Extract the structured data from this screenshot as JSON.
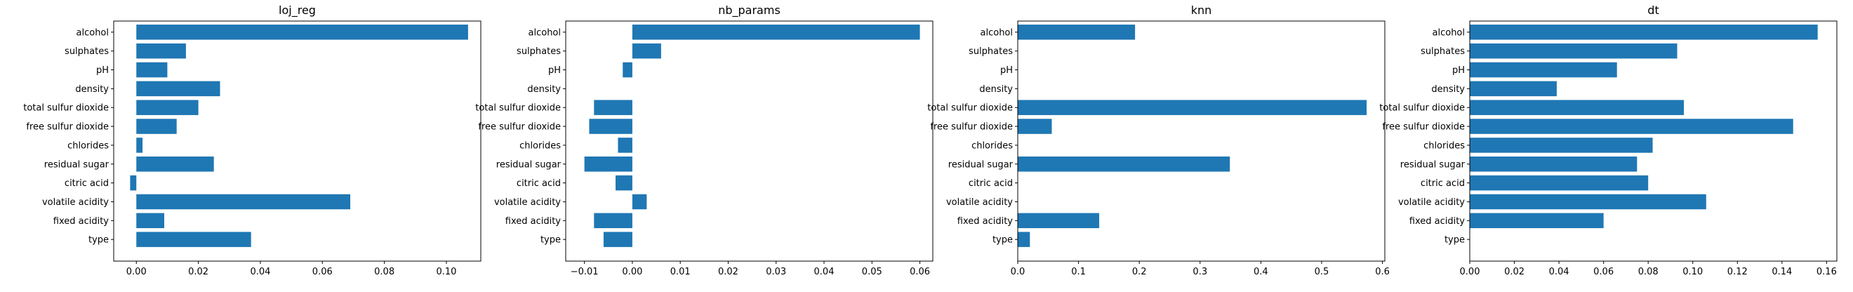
{
  "chart_data": [
    {
      "type": "bar",
      "orientation": "horizontal",
      "title": "loj_reg",
      "categories": [
        "alcohol",
        "sulphates",
        "pH",
        "density",
        "total sulfur dioxide",
        "free sulfur dioxide",
        "chlorides",
        "residual sugar",
        "citric acid",
        "volatile acidity",
        "fixed acidity",
        "type"
      ],
      "values": [
        0.107,
        0.016,
        0.01,
        0.027,
        0.02,
        0.013,
        0.002,
        0.025,
        -0.002,
        0.069,
        0.009,
        0.037
      ],
      "xlim": [
        -0.0073,
        0.1111
      ],
      "xticks": [
        0.0,
        0.02,
        0.04,
        0.06,
        0.08,
        0.1
      ],
      "xtick_labels": [
        "0.00",
        "0.02",
        "0.04",
        "0.06",
        "0.08",
        "0.10"
      ],
      "color": "#1f77b4",
      "grid": false
    },
    {
      "type": "bar",
      "orientation": "horizontal",
      "title": "nb_params",
      "categories": [
        "alcohol",
        "sulphates",
        "pH",
        "density",
        "total sulfur dioxide",
        "free sulfur dioxide",
        "chlorides",
        "residual sugar",
        "citric acid",
        "volatile acidity",
        "fixed acidity",
        "type"
      ],
      "values": [
        0.06,
        0.006,
        -0.002,
        0.0,
        -0.008,
        -0.009,
        -0.003,
        -0.01,
        -0.0035,
        0.003,
        -0.008,
        -0.006
      ],
      "xlim": [
        -0.0139,
        0.0627
      ],
      "xticks": [
        -0.01,
        0.0,
        0.01,
        0.02,
        0.03,
        0.04,
        0.05,
        0.06
      ],
      "xtick_labels": [
        "−0.01",
        "0.00",
        "0.01",
        "0.02",
        "0.03",
        "0.04",
        "0.05",
        "0.06"
      ],
      "color": "#1f77b4",
      "grid": false
    },
    {
      "type": "bar",
      "orientation": "horizontal",
      "title": "knn",
      "categories": [
        "alcohol",
        "sulphates",
        "pH",
        "density",
        "total sulfur dioxide",
        "free sulfur dioxide",
        "chlorides",
        "residual sugar",
        "citric acid",
        "volatile acidity",
        "fixed acidity",
        "type"
      ],
      "values": [
        0.193,
        0.0,
        0.0,
        0.0,
        0.574,
        0.056,
        0.0,
        0.349,
        0.0,
        0.0,
        0.134,
        0.02
      ],
      "xlim": [
        0.0,
        0.604
      ],
      "xticks": [
        0.0,
        0.1,
        0.2,
        0.3,
        0.4,
        0.5,
        0.6
      ],
      "xtick_labels": [
        "0.0",
        "0.1",
        "0.2",
        "0.3",
        "0.4",
        "0.5",
        "0.6"
      ],
      "color": "#1f77b4",
      "grid": false
    },
    {
      "type": "bar",
      "orientation": "horizontal",
      "title": "dt",
      "categories": [
        "alcohol",
        "sulphates",
        "pH",
        "density",
        "total sulfur dioxide",
        "free sulfur dioxide",
        "chlorides",
        "residual sugar",
        "citric acid",
        "volatile acidity",
        "fixed acidity",
        "type"
      ],
      "values": [
        0.156,
        0.093,
        0.066,
        0.039,
        0.096,
        0.145,
        0.082,
        0.075,
        0.08,
        0.106,
        0.06,
        0.0
      ],
      "xlim": [
        0.0,
        0.1646
      ],
      "xticks": [
        0.0,
        0.02,
        0.04,
        0.06,
        0.08,
        0.1,
        0.12,
        0.14,
        0.16
      ],
      "xtick_labels": [
        "0.00",
        "0.02",
        "0.04",
        "0.06",
        "0.08",
        "0.10",
        "0.12",
        "0.14",
        "0.16"
      ],
      "color": "#1f77b4",
      "grid": false
    }
  ]
}
